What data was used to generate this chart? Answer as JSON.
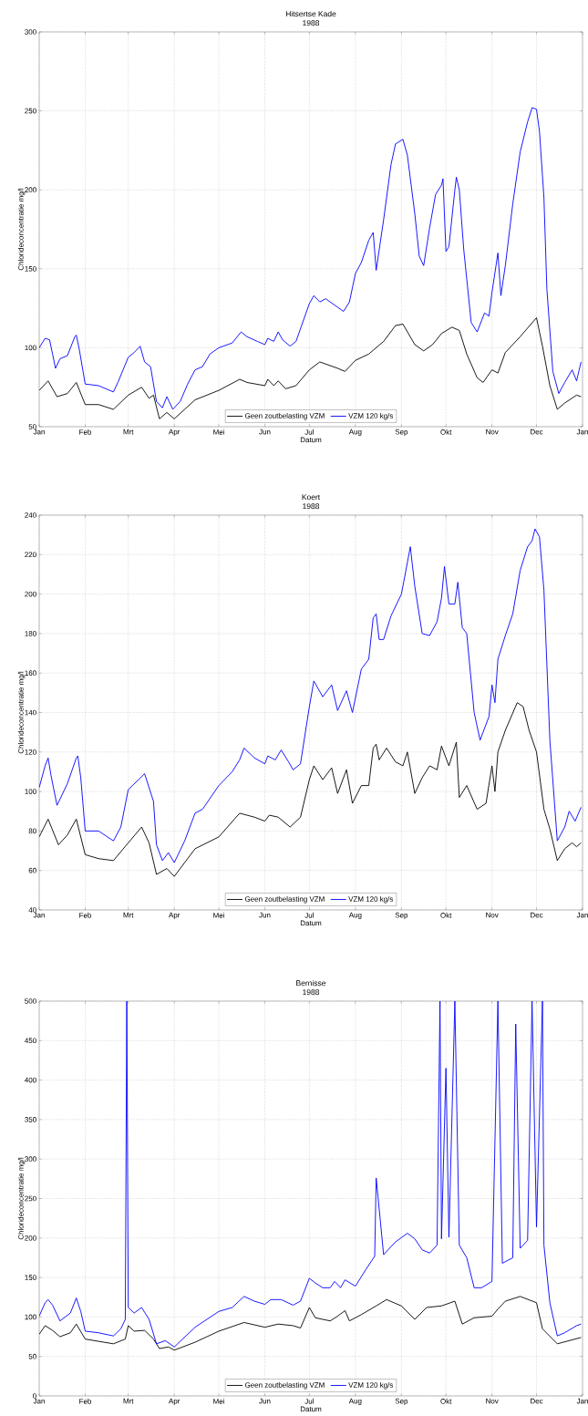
{
  "chart_data": [
    {
      "type": "line",
      "title": "Hitsertse Kade",
      "subtitle": "1988",
      "xlabel": "Datum",
      "ylabel": "Chlorideconcentratie mg/l",
      "xlim": [
        "1988-01-01",
        "1989-01-01"
      ],
      "ylim": [
        50,
        300
      ],
      "xticks": [
        {
          "value": "1988-01-01",
          "label": "Jan"
        },
        {
          "value": "1988-02-01",
          "label": "Feb"
        },
        {
          "value": "1988-03-01",
          "label": "Mrt"
        },
        {
          "value": "1988-04-01",
          "label": "Apr"
        },
        {
          "value": "1988-05-01",
          "label": "Mei"
        },
        {
          "value": "1988-06-01",
          "label": "Jun"
        },
        {
          "value": "1988-07-01",
          "label": "Jul"
        },
        {
          "value": "1988-08-01",
          "label": "Aug"
        },
        {
          "value": "1988-09-01",
          "label": "Sep"
        },
        {
          "value": "1988-10-01",
          "label": "Okt"
        },
        {
          "value": "1988-11-01",
          "label": "Nov"
        },
        {
          "value": "1988-12-01",
          "label": "Dec"
        },
        {
          "value": "1989-01-01",
          "label": "Jan"
        }
      ],
      "yticks": [
        50,
        100,
        150,
        200,
        250,
        300
      ],
      "grid": true,
      "legend": "bottom",
      "line_style": "solid",
      "series": [
        {
          "name": "Geen zoutbelasting VZM",
          "color": "#000000",
          "x": [
            "1988-01-01",
            "1988-01-07",
            "1988-01-13",
            "1988-01-20",
            "1988-01-26",
            "1988-02-01",
            "1988-02-10",
            "1988-02-20",
            "1988-03-01",
            "1988-03-10",
            "1988-03-15",
            "1988-03-18",
            "1988-03-22",
            "1988-03-27",
            "1988-04-01",
            "1988-04-15",
            "1988-05-01",
            "1988-05-15",
            "1988-05-20",
            "1988-06-01",
            "1988-06-03",
            "1988-06-07",
            "1988-06-10",
            "1988-06-15",
            "1988-06-22",
            "1988-07-01",
            "1988-07-08",
            "1988-07-20",
            "1988-07-25",
            "1988-08-01",
            "1988-08-10",
            "1988-08-20",
            "1988-08-28",
            "1988-09-02",
            "1988-09-10",
            "1988-09-16",
            "1988-09-22",
            "1988-09-28",
            "1988-10-05",
            "1988-10-10",
            "1988-10-15",
            "1988-10-22",
            "1988-10-26",
            "1988-11-01",
            "1988-11-05",
            "1988-11-10",
            "1988-11-20",
            "1988-12-01",
            "1988-12-05",
            "1988-12-10",
            "1988-12-15",
            "1988-12-20",
            "1988-12-28",
            "1988-12-31"
          ],
          "values": [
            73,
            79,
            69,
            71,
            78,
            64,
            64,
            61,
            70,
            75,
            68,
            70,
            55,
            59,
            55,
            67,
            73,
            80,
            78,
            76,
            80,
            76,
            79,
            74,
            76,
            86,
            91,
            87,
            85,
            92,
            96,
            104,
            114,
            115,
            102,
            98,
            102,
            109,
            113,
            111,
            96,
            81,
            78,
            86,
            84,
            97,
            107,
            119,
            101,
            76,
            61,
            65,
            70,
            69
          ]
        },
        {
          "name": "VZM 120 kg/s",
          "color": "#0000ff",
          "x": [
            "1988-01-01",
            "1988-01-05",
            "1988-01-08",
            "1988-01-10",
            "1988-01-12",
            "1988-01-15",
            "1988-01-20",
            "1988-01-25",
            "1988-01-26",
            "1988-01-28",
            "1988-02-01",
            "1988-02-10",
            "1988-02-20",
            "1988-02-23",
            "1988-03-01",
            "1988-03-05",
            "1988-03-09",
            "1988-03-12",
            "1988-03-16",
            "1988-03-20",
            "1988-03-24",
            "1988-03-27",
            "1988-03-31",
            "1988-04-05",
            "1988-04-10",
            "1988-04-15",
            "1988-04-20",
            "1988-04-25",
            "1988-05-01",
            "1988-05-10",
            "1988-05-16",
            "1988-05-20",
            "1988-05-27",
            "1988-06-01",
            "1988-06-03",
            "1988-06-07",
            "1988-06-10",
            "1988-06-13",
            "1988-06-18",
            "1988-06-22",
            "1988-07-01",
            "1988-07-04",
            "1988-07-08",
            "1988-07-12",
            "1988-07-18",
            "1988-07-24",
            "1988-07-28",
            "1988-08-01",
            "1988-08-05",
            "1988-08-10",
            "1988-08-13",
            "1988-08-15",
            "1988-08-20",
            "1988-08-25",
            "1988-08-28",
            "1988-09-02",
            "1988-09-05",
            "1988-09-10",
            "1988-09-13",
            "1988-09-16",
            "1988-09-20",
            "1988-09-24",
            "1988-09-28",
            "1988-09-29",
            "1988-10-01",
            "1988-10-03",
            "1988-10-07",
            "1988-10-08",
            "1988-10-10",
            "1988-10-13",
            "1988-10-18",
            "1988-10-22",
            "1988-10-27",
            "1988-10-30",
            "1988-11-01",
            "1988-11-05",
            "1988-11-07",
            "1988-11-10",
            "1988-11-15",
            "1988-11-20",
            "1988-11-25",
            "1988-11-28",
            "1988-12-01",
            "1988-12-03",
            "1988-12-06",
            "1988-12-08",
            "1988-12-12",
            "1988-12-16",
            "1988-12-20",
            "1988-12-25",
            "1988-12-28",
            "1988-12-31"
          ],
          "values": [
            100,
            106,
            105,
            96,
            87,
            93,
            95,
            107,
            108,
            99,
            77,
            76,
            72,
            78,
            94,
            97,
            101,
            91,
            88,
            66,
            62,
            69,
            61,
            66,
            77,
            86,
            88,
            96,
            100,
            103,
            110,
            107,
            104,
            102,
            106,
            104,
            110,
            105,
            101,
            104,
            128,
            133,
            129,
            131,
            127,
            123,
            129,
            147,
            154,
            168,
            173,
            149,
            181,
            216,
            229,
            232,
            222,
            185,
            158,
            152,
            176,
            197,
            203,
            207,
            161,
            164,
            200,
            208,
            200,
            162,
            116,
            110,
            122,
            120,
            135,
            160,
            133,
            152,
            191,
            224,
            243,
            252,
            251,
            237,
            195,
            137,
            85,
            71,
            78,
            86,
            79,
            91
          ]
        }
      ]
    },
    {
      "type": "line",
      "title": "Koert",
      "subtitle": "1988",
      "xlabel": "Datum",
      "ylabel": "Chlorideconcentratie mg/l",
      "xlim": [
        "1988-01-01",
        "1989-01-01"
      ],
      "ylim": [
        40,
        240
      ],
      "xticks": [
        {
          "value": "1988-01-01",
          "label": "Jan"
        },
        {
          "value": "1988-02-01",
          "label": "Feb"
        },
        {
          "value": "1988-03-01",
          "label": "Mrt"
        },
        {
          "value": "1988-04-01",
          "label": "Apr"
        },
        {
          "value": "1988-05-01",
          "label": "Mei"
        },
        {
          "value": "1988-06-01",
          "label": "Jun"
        },
        {
          "value": "1988-07-01",
          "label": "Jul"
        },
        {
          "value": "1988-08-01",
          "label": "Aug"
        },
        {
          "value": "1988-09-01",
          "label": "Sep"
        },
        {
          "value": "1988-10-01",
          "label": "Okt"
        },
        {
          "value": "1988-11-01",
          "label": "Nov"
        },
        {
          "value": "1988-12-01",
          "label": "Dec"
        },
        {
          "value": "1989-01-01",
          "label": "Jan"
        }
      ],
      "yticks": [
        40,
        60,
        80,
        100,
        120,
        140,
        160,
        180,
        200,
        220,
        240
      ],
      "grid": true,
      "legend": "bottom",
      "line_style": "solid",
      "series": [
        {
          "name": "Geen zoutbelasting VZM",
          "color": "#000000",
          "x": [
            "1988-01-01",
            "1988-01-07",
            "1988-01-14",
            "1988-01-20",
            "1988-01-26",
            "1988-02-01",
            "1988-02-10",
            "1988-02-20",
            "1988-03-01",
            "1988-03-10",
            "1988-03-15",
            "1988-03-20",
            "1988-03-27",
            "1988-04-01",
            "1988-04-15",
            "1988-05-01",
            "1988-05-15",
            "1988-05-25",
            "1988-06-01",
            "1988-06-04",
            "1988-06-10",
            "1988-06-18",
            "1988-06-25",
            "1988-07-01",
            "1988-07-04",
            "1988-07-10",
            "1988-07-16",
            "1988-07-20",
            "1988-07-26",
            "1988-07-30",
            "1988-08-05",
            "1988-08-10",
            "1988-08-13",
            "1988-08-15",
            "1988-08-17",
            "1988-08-22",
            "1988-08-28",
            "1988-09-02",
            "1988-09-05",
            "1988-09-10",
            "1988-09-15",
            "1988-09-20",
            "1988-09-25",
            "1988-09-28",
            "1988-10-03",
            "1988-10-08",
            "1988-10-10",
            "1988-10-15",
            "1988-10-22",
            "1988-10-28",
            "1988-11-01",
            "1988-11-03",
            "1988-11-05",
            "1988-11-10",
            "1988-11-18",
            "1988-11-22",
            "1988-11-26",
            "1988-12-01",
            "1988-12-06",
            "1988-12-10",
            "1988-12-15",
            "1988-12-20",
            "1988-12-25",
            "1988-12-28",
            "1988-12-31"
          ],
          "values": [
            77,
            86,
            73,
            78,
            86,
            68,
            66,
            65,
            74,
            82,
            74,
            58,
            61,
            57,
            71,
            77,
            89,
            87,
            85,
            88,
            87,
            82,
            87,
            106,
            113,
            106,
            112,
            99,
            111,
            94,
            103,
            103,
            122,
            124,
            116,
            122,
            115,
            113,
            120,
            99,
            107,
            113,
            111,
            123,
            113,
            125,
            97,
            103,
            91,
            94,
            113,
            100,
            120,
            131,
            145,
            143,
            131,
            120,
            91,
            81,
            65,
            71,
            74,
            72,
            74
          ]
        },
        {
          "name": "VZM 120 kg/s",
          "color": "#0000ff",
          "x": [
            "1988-01-01",
            "1988-01-05",
            "1988-01-07",
            "1988-01-09",
            "1988-01-13",
            "1988-01-20",
            "1988-01-26",
            "1988-01-27",
            "1988-01-29",
            "1988-02-01",
            "1988-02-10",
            "1988-02-20",
            "1988-02-25",
            "1988-03-01",
            "1988-03-08",
            "1988-03-12",
            "1988-03-18",
            "1988-03-20",
            "1988-03-24",
            "1988-03-28",
            "1988-04-01",
            "1988-04-08",
            "1988-04-15",
            "1988-04-20",
            "1988-05-01",
            "1988-05-10",
            "1988-05-15",
            "1988-05-18",
            "1988-05-25",
            "1988-06-01",
            "1988-06-03",
            "1988-06-08",
            "1988-06-12",
            "1988-06-17",
            "1988-06-20",
            "1988-06-25",
            "1988-07-01",
            "1988-07-04",
            "1988-07-10",
            "1988-07-16",
            "1988-07-20",
            "1988-07-26",
            "1988-07-30",
            "1988-08-05",
            "1988-08-10",
            "1988-08-13",
            "1988-08-15",
            "1988-08-17",
            "1988-08-20",
            "1988-08-25",
            "1988-09-01",
            "1988-09-05",
            "1988-09-07",
            "1988-09-10",
            "1988-09-15",
            "1988-09-20",
            "1988-09-25",
            "1988-09-28",
            "1988-09-30",
            "1988-10-03",
            "1988-10-07",
            "1988-10-09",
            "1988-10-12",
            "1988-10-15",
            "1988-10-20",
            "1988-10-24",
            "1988-10-30",
            "1988-11-01",
            "1988-11-03",
            "1988-11-05",
            "1988-11-10",
            "1988-11-15",
            "1988-11-20",
            "1988-11-25",
            "1988-11-28",
            "1988-11-30",
            "1988-12-03",
            "1988-12-06",
            "1988-12-10",
            "1988-12-15",
            "1988-12-20",
            "1988-12-23",
            "1988-12-27",
            "1988-12-31"
          ],
          "values": [
            102,
            113,
            117,
            108,
            93,
            104,
            117,
            118,
            107,
            80,
            80,
            75,
            82,
            101,
            106,
            109,
            95,
            73,
            65,
            69,
            64,
            75,
            89,
            91,
            103,
            110,
            116,
            122,
            117,
            114,
            118,
            116,
            121,
            115,
            111,
            114,
            143,
            156,
            148,
            154,
            141,
            151,
            140,
            162,
            167,
            188,
            190,
            177,
            177,
            189,
            200,
            216,
            224,
            204,
            180,
            179,
            186,
            198,
            214,
            195,
            195,
            206,
            183,
            180,
            140,
            126,
            138,
            154,
            145,
            167,
            179,
            190,
            212,
            224,
            227,
            233,
            229,
            202,
            126,
            75,
            82,
            90,
            85,
            92
          ]
        }
      ]
    },
    {
      "type": "line",
      "title": "Bernisse",
      "subtitle": "1988",
      "xlabel": "Datum",
      "ylabel": "Chlorideconcentratie mg/l",
      "xlim": [
        "1988-01-01",
        "1989-01-01"
      ],
      "ylim": [
        0,
        500
      ],
      "xticks": [
        {
          "value": "1988-01-01",
          "label": "Jan"
        },
        {
          "value": "1988-02-01",
          "label": "Feb"
        },
        {
          "value": "1988-03-01",
          "label": "Mrt"
        },
        {
          "value": "1988-04-01",
          "label": "Apr"
        },
        {
          "value": "1988-05-01",
          "label": "Mei"
        },
        {
          "value": "1988-06-01",
          "label": "Jun"
        },
        {
          "value": "1988-07-01",
          "label": "Jul"
        },
        {
          "value": "1988-08-01",
          "label": "Aug"
        },
        {
          "value": "1988-09-01",
          "label": "Sep"
        },
        {
          "value": "1988-10-01",
          "label": "Okt"
        },
        {
          "value": "1988-11-01",
          "label": "Nov"
        },
        {
          "value": "1988-12-01",
          "label": "Dec"
        },
        {
          "value": "1989-01-01",
          "label": "Jan"
        }
      ],
      "yticks": [
        0,
        50,
        100,
        150,
        200,
        250,
        300,
        350,
        400,
        450,
        500
      ],
      "grid": true,
      "legend": "bottom",
      "line_style": "solid",
      "series": [
        {
          "name": "Geen zoutbelasting VZM",
          "color": "#000000",
          "x": [
            "1988-01-01",
            "1988-01-05",
            "1988-01-10",
            "1988-01-15",
            "1988-01-22",
            "1988-01-26",
            "1988-02-01",
            "1988-02-20",
            "1988-02-28",
            "1988-03-01",
            "1988-03-05",
            "1988-03-12",
            "1988-03-18",
            "1988-03-22",
            "1988-03-28",
            "1988-04-01",
            "1988-04-15",
            "1988-05-01",
            "1988-05-18",
            "1988-06-01",
            "1988-06-10",
            "1988-06-20",
            "1988-06-25",
            "1988-07-01",
            "1988-07-05",
            "1988-07-15",
            "1988-07-20",
            "1988-07-25",
            "1988-07-28",
            "1988-08-05",
            "1988-08-15",
            "1988-08-22",
            "1988-09-01",
            "1988-09-10",
            "1988-09-18",
            "1988-09-28",
            "1988-10-07",
            "1988-10-12",
            "1988-10-20",
            "1988-11-01",
            "1988-11-05",
            "1988-11-10",
            "1988-11-20",
            "1988-12-01",
            "1988-12-05",
            "1988-12-15",
            "1988-12-31"
          ],
          "values": [
            78,
            89,
            83,
            75,
            80,
            91,
            72,
            66,
            72,
            89,
            82,
            83,
            72,
            60,
            62,
            58,
            68,
            82,
            93,
            87,
            91,
            89,
            86,
            112,
            99,
            95,
            101,
            108,
            95,
            103,
            114,
            122,
            114,
            97,
            112,
            114,
            120,
            91,
            99,
            101,
            110,
            120,
            126,
            118,
            85,
            66,
            74
          ]
        },
        {
          "name": "VZM 120 kg/s",
          "color": "#0000ff",
          "x": [
            "1988-01-01",
            "1988-01-05",
            "1988-01-07",
            "1988-01-10",
            "1988-01-15",
            "1988-01-22",
            "1988-01-26",
            "1988-01-29",
            "1988-02-01",
            "1988-02-10",
            "1988-02-20",
            "1988-02-25",
            "1988-02-28",
            "1988-02-29",
            "1988-03-01",
            "1988-03-05",
            "1988-03-10",
            "1988-03-15",
            "1988-03-20",
            "1988-03-26",
            "1988-04-01",
            "1988-04-15",
            "1988-05-01",
            "1988-05-10",
            "1988-05-18",
            "1988-05-25",
            "1988-06-01",
            "1988-06-05",
            "1988-06-12",
            "1988-06-20",
            "1988-06-25",
            "1988-07-01",
            "1988-07-05",
            "1988-07-10",
            "1988-07-15",
            "1988-07-18",
            "1988-07-22",
            "1988-07-25",
            "1988-08-01",
            "1988-08-08",
            "1988-08-14",
            "1988-08-15",
            "1988-08-20",
            "1988-08-28",
            "1988-09-05",
            "1988-09-10",
            "1988-09-15",
            "1988-09-20",
            "1988-09-25",
            "1988-09-27",
            "1988-09-28",
            "1988-10-01",
            "1988-10-03",
            "1988-10-07",
            "1988-10-10",
            "1988-10-15",
            "1988-10-20",
            "1988-10-25",
            "1988-11-01",
            "1988-11-05",
            "1988-11-08",
            "1988-11-15",
            "1988-11-17",
            "1988-11-20",
            "1988-11-25",
            "1988-11-28",
            "1988-12-01",
            "1988-12-05",
            "1988-12-06",
            "1988-12-10",
            "1988-12-15",
            "1988-12-20",
            "1988-12-28",
            "1988-12-31"
          ],
          "values": [
            101,
            118,
            122,
            115,
            95,
            105,
            124,
            107,
            82,
            80,
            76,
            85,
            97,
            500,
            112,
            105,
            112,
            97,
            66,
            70,
            62,
            87,
            107,
            112,
            126,
            120,
            116,
            122,
            122,
            115,
            120,
            149,
            143,
            137,
            137,
            145,
            137,
            147,
            139,
            160,
            177,
            276,
            179,
            195,
            206,
            199,
            185,
            181,
            191,
            500,
            199,
            415,
            201,
            500,
            191,
            175,
            137,
            137,
            145,
            500,
            168,
            175,
            471,
            187,
            197,
            500,
            214,
            500,
            191,
            118,
            76,
            80,
            89,
            91
          ]
        }
      ]
    }
  ]
}
